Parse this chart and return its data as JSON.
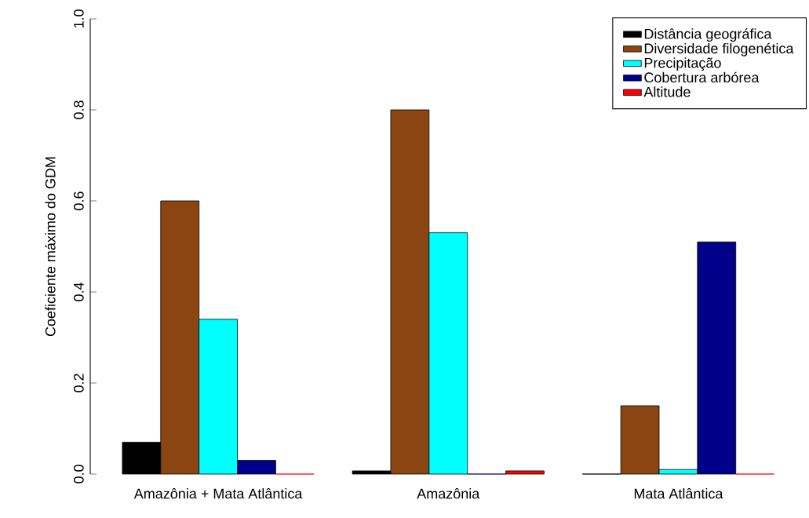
{
  "chart_data": {
    "type": "bar",
    "ylabel": "Coeficiente máximo do GDM",
    "categories": [
      "Amazônia + Mata Atlântica",
      "Amazônia",
      "Mata Atlântica"
    ],
    "series": [
      {
        "name": "Distância geográfica",
        "color": "#000000",
        "values": [
          0.07,
          0.007,
          0
        ]
      },
      {
        "name": "Diversidade filogenética",
        "color": "#8b4513",
        "values": [
          0.6,
          0.8,
          0.15
        ]
      },
      {
        "name": "Precipitação",
        "color": "#00ffff",
        "values": [
          0.34,
          0.53,
          0.01
        ]
      },
      {
        "name": "Cobertura arbórea",
        "color": "#00008b",
        "values": [
          0.03,
          0,
          0.51
        ]
      },
      {
        "name": "Altitude",
        "color": "#ff0000",
        "values": [
          0,
          0.007,
          0
        ]
      }
    ],
    "ylim": [
      0,
      1
    ],
    "yticks": [
      {
        "value": 0,
        "label": "0.0"
      },
      0.2,
      0.4,
      0.6,
      0.8,
      {
        "value": 1,
        "label": "1.0"
      }
    ],
    "legend": "top right"
  }
}
